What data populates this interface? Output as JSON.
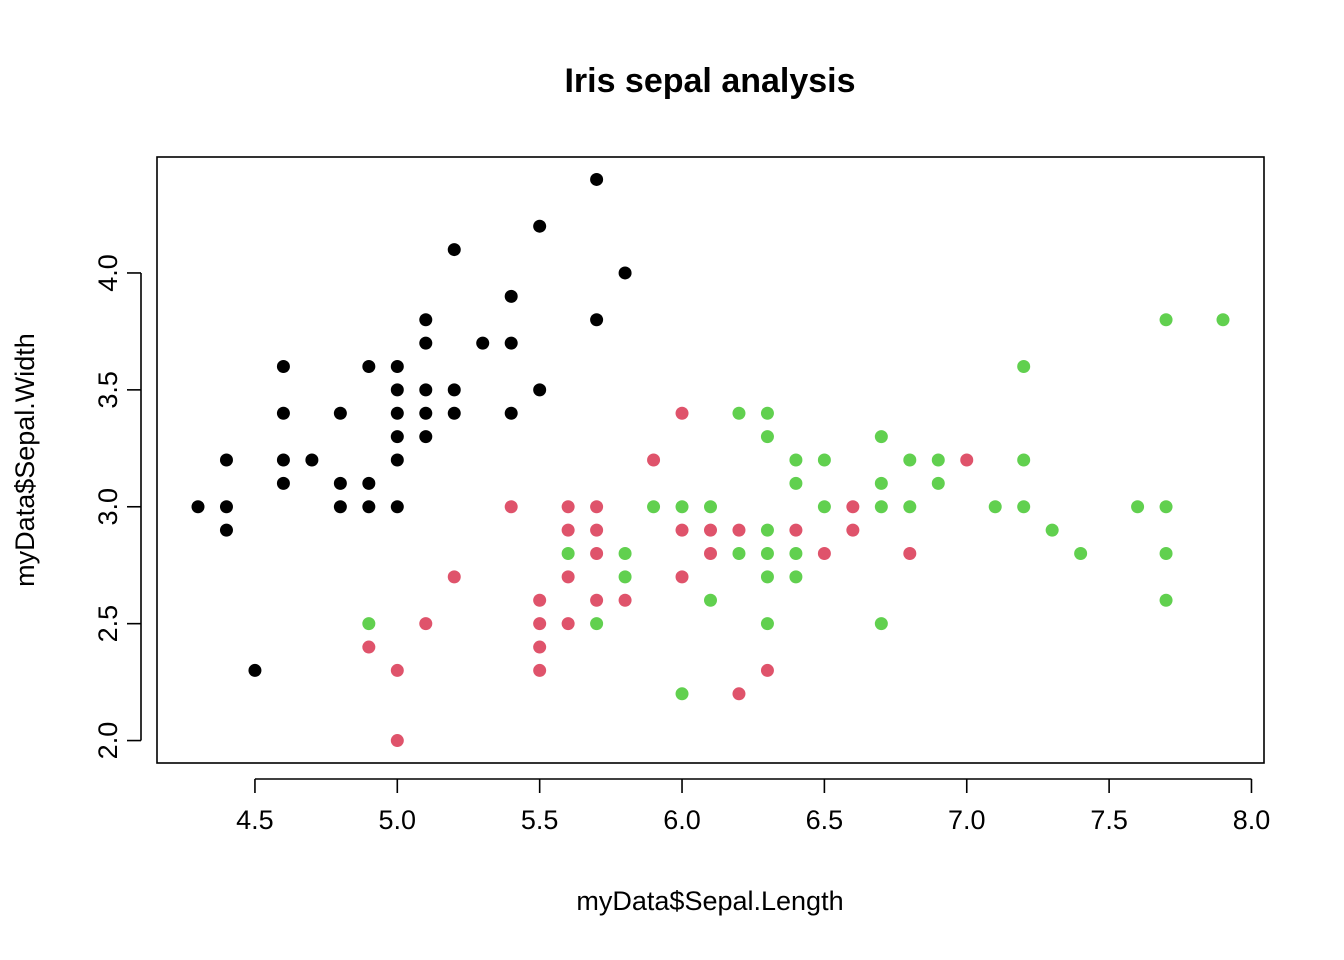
{
  "chart_data": {
    "type": "scatter",
    "title": "Iris sepal analysis",
    "xlabel": "myData$Sepal.Length",
    "ylabel": "myData$Sepal.Width",
    "xlim": [
      4.3,
      7.9
    ],
    "ylim": [
      2.0,
      4.4
    ],
    "x_ticks": [
      "4.5",
      "5.0",
      "5.5",
      "6.0",
      "6.5",
      "7.0",
      "7.5",
      "8.0"
    ],
    "y_ticks": [
      "2.0",
      "2.5",
      "3.0",
      "3.5",
      "4.0"
    ],
    "grid": false,
    "series": [
      {
        "color": "#000000",
        "points": [
          [
            4.3,
            3.0
          ],
          [
            4.4,
            3.2
          ],
          [
            4.4,
            3.0
          ],
          [
            4.4,
            2.9
          ],
          [
            4.5,
            2.3
          ],
          [
            4.6,
            3.6
          ],
          [
            4.6,
            3.4
          ],
          [
            4.6,
            3.2
          ],
          [
            4.6,
            3.1
          ],
          [
            4.7,
            3.2
          ],
          [
            4.8,
            3.4
          ],
          [
            4.8,
            3.1
          ],
          [
            4.8,
            3.0
          ],
          [
            4.9,
            3.6
          ],
          [
            4.9,
            3.1
          ],
          [
            4.9,
            3.0
          ],
          [
            5.0,
            3.6
          ],
          [
            5.0,
            3.5
          ],
          [
            5.0,
            3.4
          ],
          [
            5.0,
            3.3
          ],
          [
            5.0,
            3.2
          ],
          [
            5.0,
            3.0
          ],
          [
            5.1,
            3.8
          ],
          [
            5.1,
            3.7
          ],
          [
            5.1,
            3.5
          ],
          [
            5.1,
            3.4
          ],
          [
            5.1,
            3.3
          ],
          [
            5.2,
            4.1
          ],
          [
            5.2,
            3.5
          ],
          [
            5.2,
            3.4
          ],
          [
            5.3,
            3.7
          ],
          [
            5.4,
            3.9
          ],
          [
            5.4,
            3.7
          ],
          [
            5.4,
            3.4
          ],
          [
            5.5,
            4.2
          ],
          [
            5.5,
            3.5
          ],
          [
            5.7,
            4.4
          ],
          [
            5.7,
            3.8
          ],
          [
            5.8,
            4.0
          ]
        ]
      },
      {
        "color": "#DF536B",
        "points": [
          [
            4.9,
            2.4
          ],
          [
            5.0,
            2.3
          ],
          [
            5.0,
            2.0
          ],
          [
            5.1,
            2.5
          ],
          [
            5.2,
            2.7
          ],
          [
            5.4,
            3.0
          ],
          [
            5.5,
            2.6
          ],
          [
            5.5,
            2.5
          ],
          [
            5.5,
            2.4
          ],
          [
            5.5,
            2.3
          ],
          [
            5.6,
            3.0
          ],
          [
            5.6,
            2.9
          ],
          [
            5.6,
            2.7
          ],
          [
            5.6,
            2.5
          ],
          [
            5.7,
            3.0
          ],
          [
            5.7,
            2.9
          ],
          [
            5.7,
            2.8
          ],
          [
            5.7,
            2.6
          ],
          [
            5.8,
            2.6
          ],
          [
            5.9,
            3.2
          ],
          [
            6.0,
            3.4
          ],
          [
            6.0,
            2.9
          ],
          [
            6.0,
            2.7
          ],
          [
            6.1,
            2.9
          ],
          [
            6.1,
            2.8
          ],
          [
            6.2,
            2.9
          ],
          [
            6.2,
            2.2
          ],
          [
            6.3,
            2.3
          ],
          [
            6.4,
            2.9
          ],
          [
            6.5,
            2.8
          ],
          [
            6.6,
            3.0
          ],
          [
            6.6,
            2.9
          ],
          [
            6.8,
            2.8
          ],
          [
            7.0,
            3.2
          ]
        ]
      },
      {
        "color": "#61D04F",
        "points": [
          [
            4.9,
            2.5
          ],
          [
            5.6,
            2.8
          ],
          [
            5.7,
            2.5
          ],
          [
            5.8,
            2.8
          ],
          [
            5.8,
            2.7
          ],
          [
            5.9,
            3.0
          ],
          [
            6.0,
            3.0
          ],
          [
            6.0,
            2.2
          ],
          [
            6.1,
            3.0
          ],
          [
            6.1,
            2.6
          ],
          [
            6.2,
            3.4
          ],
          [
            6.2,
            2.8
          ],
          [
            6.3,
            3.4
          ],
          [
            6.3,
            3.3
          ],
          [
            6.3,
            2.9
          ],
          [
            6.3,
            2.8
          ],
          [
            6.3,
            2.7
          ],
          [
            6.3,
            2.5
          ],
          [
            6.4,
            3.2
          ],
          [
            6.4,
            3.1
          ],
          [
            6.4,
            2.8
          ],
          [
            6.4,
            2.7
          ],
          [
            6.5,
            3.2
          ],
          [
            6.5,
            3.0
          ],
          [
            6.7,
            3.3
          ],
          [
            6.7,
            3.1
          ],
          [
            6.7,
            3.0
          ],
          [
            6.7,
            2.5
          ],
          [
            6.8,
            3.2
          ],
          [
            6.8,
            3.0
          ],
          [
            6.9,
            3.2
          ],
          [
            6.9,
            3.1
          ],
          [
            7.1,
            3.0
          ],
          [
            7.2,
            3.6
          ],
          [
            7.2,
            3.2
          ],
          [
            7.2,
            3.0
          ],
          [
            7.3,
            2.9
          ],
          [
            7.4,
            2.8
          ],
          [
            7.6,
            3.0
          ],
          [
            7.7,
            3.8
          ],
          [
            7.7,
            3.0
          ],
          [
            7.7,
            2.8
          ],
          [
            7.7,
            2.6
          ],
          [
            7.9,
            3.8
          ]
        ]
      }
    ]
  }
}
